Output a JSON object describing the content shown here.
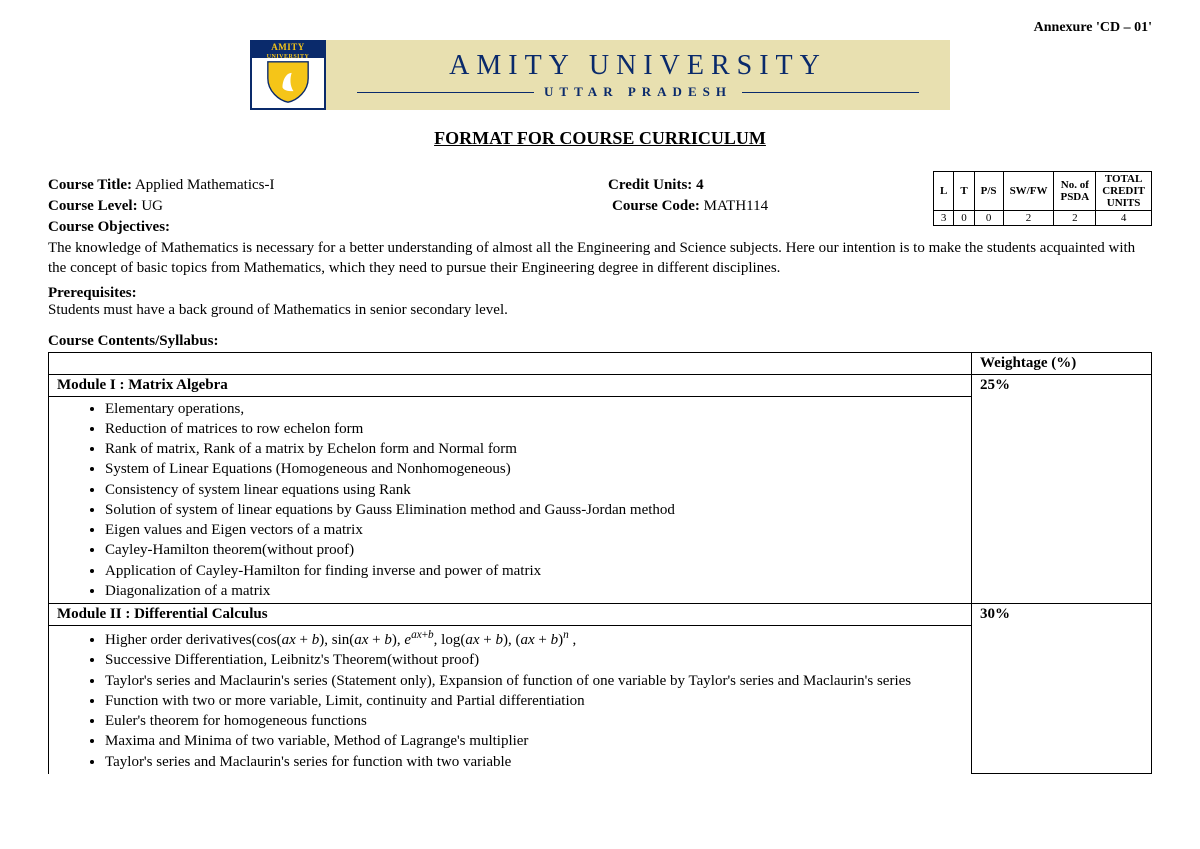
{
  "annexure": "Annexure 'CD – 01'",
  "banner": {
    "logo_top1": "AMITY",
    "logo_top2": "UNIVERSITY",
    "name": "AMITY UNIVERSITY",
    "sub": "UTTAR PRADESH"
  },
  "format_title": "FORMAT FOR COURSE CURRICULUM",
  "course": {
    "title_label": "Course Title:",
    "title_value": " Applied Mathematics-I",
    "credit_units_label": "Credit Units: ",
    "credit_units_value": "4",
    "level_label": "Course Level: ",
    "level_value": "UG",
    "code_label": "Course Code: ",
    "code_value": "MATH114"
  },
  "credit_table": {
    "headers": [
      "L",
      "T",
      "P/S",
      "SW/FW",
      "No. of PSDA",
      "TOTAL CREDIT UNITS"
    ],
    "row": [
      "3",
      "0",
      "0",
      "2",
      "2",
      "4"
    ]
  },
  "objectives_label": "Course Objectives:",
  "objectives_text": "The knowledge of Mathematics is necessary for a better understanding of almost all the Engineering and Science subjects.  Here our intention is to make the students acquainted with the concept of basic topics from Mathematics, which they need to pursue their Engineering degree in different disciplines.",
  "prereq_label": "Prerequisites:",
  "prereq_text": "Students must have a back ground of Mathematics in senior secondary level.",
  "syllabus_label": "Course Contents/Syllabus:",
  "weightage_header": "Weightage (%)",
  "modules": [
    {
      "title": "Module I :  Matrix Algebra",
      "weight": "25%",
      "items": [
        "Elementary operations,",
        "Reduction of matrices to row echelon form",
        "Rank of matrix, Rank of a matrix by Echelon form and Normal form",
        "System of Linear Equations (Homogeneous and Nonhomogeneous)",
        "Consistency of system linear equations using Rank",
        "Solution of system of linear equations by Gauss Elimination method and Gauss-Jordan method",
        "Eigen values and Eigen vectors of a matrix",
        "Cayley-Hamilton theorem(without proof)",
        "Application of Cayley-Hamilton for finding inverse and power of matrix",
        "Diagonalization of a matrix"
      ]
    },
    {
      "title": "Module II : Differential Calculus",
      "weight": "30%",
      "items": [
        "Higher order derivatives(cos(𝑎𝑥 + 𝑏), sin(𝑎𝑥 + 𝑏), 𝑒^{𝑎𝑥+𝑏}, log(𝑎𝑥 + 𝑏), (𝑎𝑥 + 𝑏)^{𝑛} ,",
        "Successive Differentiation, Leibnitz's Theorem(without proof)",
        "Taylor's series and Maclaurin's  series (Statement only), Expansion of function of one variable by Taylor's series and Maclaurin's  series",
        "Function with two or more variable, Limit, continuity and Partial differentiation",
        "Euler's theorem for homogeneous functions",
        "Maxima and Minima of two variable, Method of Lagrange's multiplier",
        "Taylor's series and Maclaurin's  series for  function with two variable"
      ]
    }
  ],
  "colors": {
    "banner_bg": "#e8e0b0",
    "brand": "#0a2a6b",
    "gold": "#f5c518"
  }
}
